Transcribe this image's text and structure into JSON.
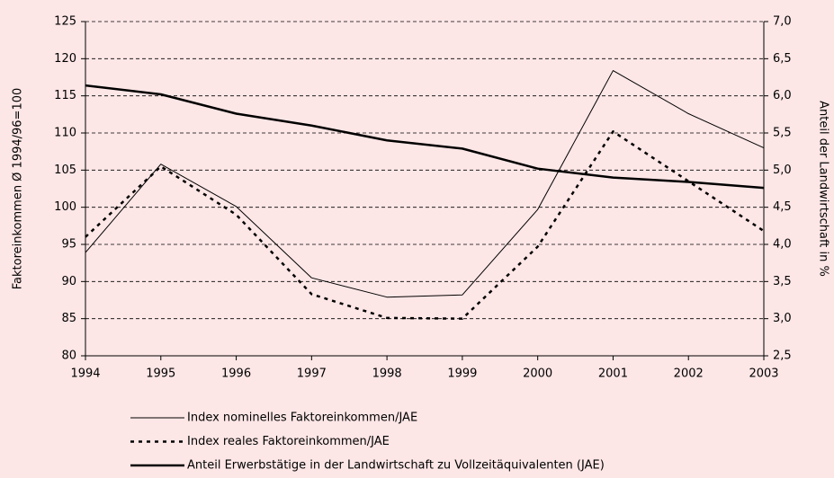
{
  "chart_data": {
    "type": "line",
    "categories": [
      "1994",
      "1995",
      "1996",
      "1997",
      "1998",
      "1999",
      "2000",
      "2001",
      "2002",
      "2003"
    ],
    "y_label": "Faktoreinkommen Ø 1994/96=100",
    "y2_label": "Anteil der Landwirtschaft in %",
    "ylim": [
      80,
      125
    ],
    "yticks": [
      80,
      85,
      90,
      95,
      100,
      105,
      110,
      115,
      120,
      125
    ],
    "y2lim": [
      2.5,
      7.0
    ],
    "y2ticks": [
      {
        "value": 2.5,
        "label": "2,5"
      },
      {
        "value": 3.0,
        "label": "3,0"
      },
      {
        "value": 3.5,
        "label": "3,5"
      },
      {
        "value": 4.0,
        "label": "4,0"
      },
      {
        "value": 4.5,
        "label": "4,5"
      },
      {
        "value": 5.0,
        "label": "5,0"
      },
      {
        "value": 5.5,
        "label": "5,5"
      },
      {
        "value": 6.0,
        "label": "6,0"
      },
      {
        "value": 6.5,
        "label": "6,5"
      },
      {
        "value": 7.0,
        "label": "7,0"
      }
    ],
    "grid": true,
    "legend": "bottom",
    "series": [
      {
        "name": "Index nominelles Faktoreinkommen/JAE",
        "color": "#000000",
        "style": "thin",
        "values": [
          93.9,
          105.8,
          100.1,
          90.5,
          87.9,
          88.2,
          99.7,
          118.4,
          112.6,
          108.0
        ]
      },
      {
        "name": "Index reales Faktoreinkommen/JAE",
        "color": "#000000",
        "style": "dotted",
        "values": [
          96.0,
          105.5,
          99.0,
          88.3,
          85.1,
          85.0,
          94.7,
          110.2,
          103.5,
          96.8
        ]
      },
      {
        "name": "Anteil Erwerbstätige in der Landwirtschaft zu Vollzeitäquivalenten (JAE)",
        "color": "#000000",
        "style": "thick",
        "axis": "y2",
        "values": [
          6.14,
          6.02,
          5.76,
          5.6,
          5.4,
          5.29,
          5.02,
          4.9,
          4.84,
          4.76
        ]
      }
    ]
  }
}
